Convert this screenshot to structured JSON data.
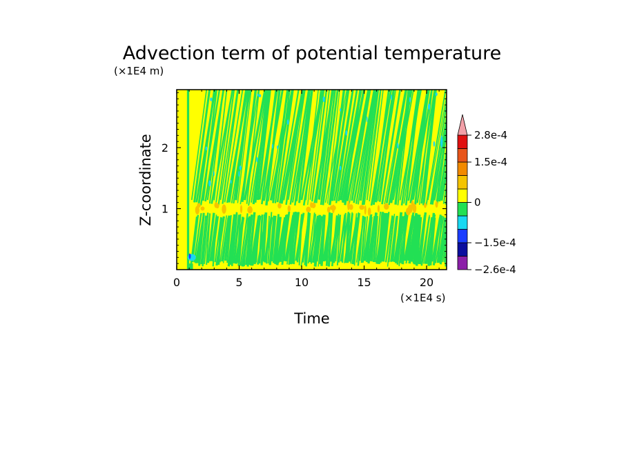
{
  "chart_data": {
    "type": "heatmap",
    "title": "Advection term of potential temperature",
    "xlabel": "Time",
    "ylabel": "Z-coordinate",
    "x_unit": "(×1E4 s)",
    "y_unit": "(×1E4 m)",
    "xlim": [
      0,
      21.6
    ],
    "ylim": [
      0,
      2.95
    ],
    "x_ticks": [
      {
        "value": 0,
        "label": "0"
      },
      {
        "value": 5,
        "label": "5"
      },
      {
        "value": 10,
        "label": "10"
      },
      {
        "value": 15,
        "label": "15"
      },
      {
        "value": 20,
        "label": "20"
      }
    ],
    "y_ticks": [
      {
        "value": 1,
        "label": "1"
      },
      {
        "value": 2,
        "label": "2"
      }
    ],
    "colorbar": {
      "levels": [
        -0.00026,
        -0.0002,
        -0.00015,
        -0.0001,
        -5e-05,
        0,
        5e-05,
        0.0001,
        0.00015,
        0.0002,
        0.00028
      ],
      "colors": [
        "#8b1fa8",
        "#0b0e9e",
        "#1a3dff",
        "#19d8f2",
        "#22e054",
        "#ffff00",
        "#f5c400",
        "#f28a00",
        "#e8551a",
        "#e01010",
        "#f2a0a8"
      ],
      "tick_labels": [
        {
          "value": 0.00028,
          "label": "2.8e-4"
        },
        {
          "value": 0.00015,
          "label": "1.5e-4"
        },
        {
          "value": 0,
          "label": "0"
        },
        {
          "value": -0.00015,
          "label": "−1.5e-4"
        },
        {
          "value": -0.00026,
          "label": "−2.6e-4"
        }
      ]
    },
    "field_description": "Alternating green/yellow streaks slanting with height after x≈1.3; uniform yellow band for x<0.8 and a green column at x≈0.9; orange patches near z≈1.0; cyan specks in upper region and near surface at early times."
  }
}
